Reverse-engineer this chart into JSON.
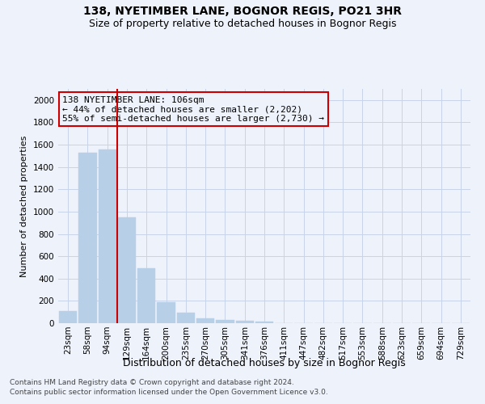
{
  "title1": "138, NYETIMBER LANE, BOGNOR REGIS, PO21 3HR",
  "title2": "Size of property relative to detached houses in Bognor Regis",
  "xlabel": "Distribution of detached houses by size in Bognor Regis",
  "ylabel": "Number of detached properties",
  "categories": [
    "23sqm",
    "58sqm",
    "94sqm",
    "129sqm",
    "164sqm",
    "200sqm",
    "235sqm",
    "270sqm",
    "305sqm",
    "341sqm",
    "376sqm",
    "411sqm",
    "447sqm",
    "482sqm",
    "517sqm",
    "553sqm",
    "588sqm",
    "623sqm",
    "659sqm",
    "694sqm",
    "729sqm"
  ],
  "values": [
    110,
    1530,
    1560,
    950,
    490,
    185,
    95,
    45,
    30,
    20,
    15,
    0,
    0,
    0,
    0,
    0,
    0,
    0,
    0,
    0,
    0
  ],
  "bar_color": "#b8cfe8",
  "bar_edge_color": "#b8cfe8",
  "vline_color": "#cc0000",
  "vline_x_index": 2.5,
  "annotation_text": "138 NYETIMBER LANE: 106sqm\n← 44% of detached houses are smaller (2,202)\n55% of semi-detached houses are larger (2,730) →",
  "annotation_box_edge_color": "#cc0000",
  "ylim": [
    0,
    2100
  ],
  "yticks": [
    0,
    200,
    400,
    600,
    800,
    1000,
    1200,
    1400,
    1600,
    1800,
    2000
  ],
  "footer1": "Contains HM Land Registry data © Crown copyright and database right 2024.",
  "footer2": "Contains public sector information licensed under the Open Government Licence v3.0.",
  "bg_color": "#eef2fb",
  "plot_bg_color": "#eef2fb",
  "grid_color": "#c8d4ea",
  "title1_fontsize": 10,
  "title2_fontsize": 9,
  "xlabel_fontsize": 9,
  "ylabel_fontsize": 8,
  "tick_fontsize": 7.5,
  "annotation_fontsize": 8,
  "footer_fontsize": 6.5
}
